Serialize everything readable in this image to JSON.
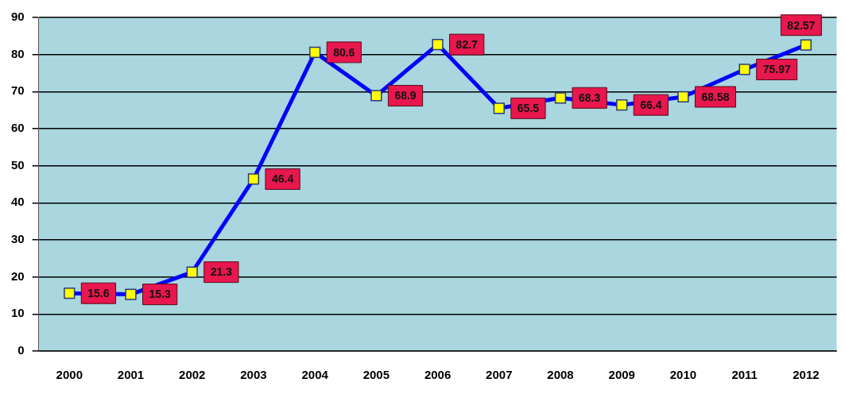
{
  "chart_data": {
    "type": "line",
    "categories": [
      "2000",
      "2001",
      "2002",
      "2003",
      "2004",
      "2005",
      "2006",
      "2007",
      "2008",
      "2009",
      "2010",
      "2011",
      "2012"
    ],
    "series": [
      {
        "color": "#0000ff",
        "values": [
          15.6,
          15.3,
          21.3,
          46.4,
          80.6,
          68.9,
          82.7,
          65.5,
          68.3,
          66.4,
          68.58,
          75.97,
          82.57
        ]
      }
    ],
    "ylim": [
      0,
      90
    ],
    "yticks": [
      0,
      10,
      20,
      30,
      40,
      50,
      60,
      70,
      80,
      90
    ],
    "grid": "y",
    "legend": false,
    "marker": "square",
    "line_style": "solid",
    "data_labels": true
  }
}
